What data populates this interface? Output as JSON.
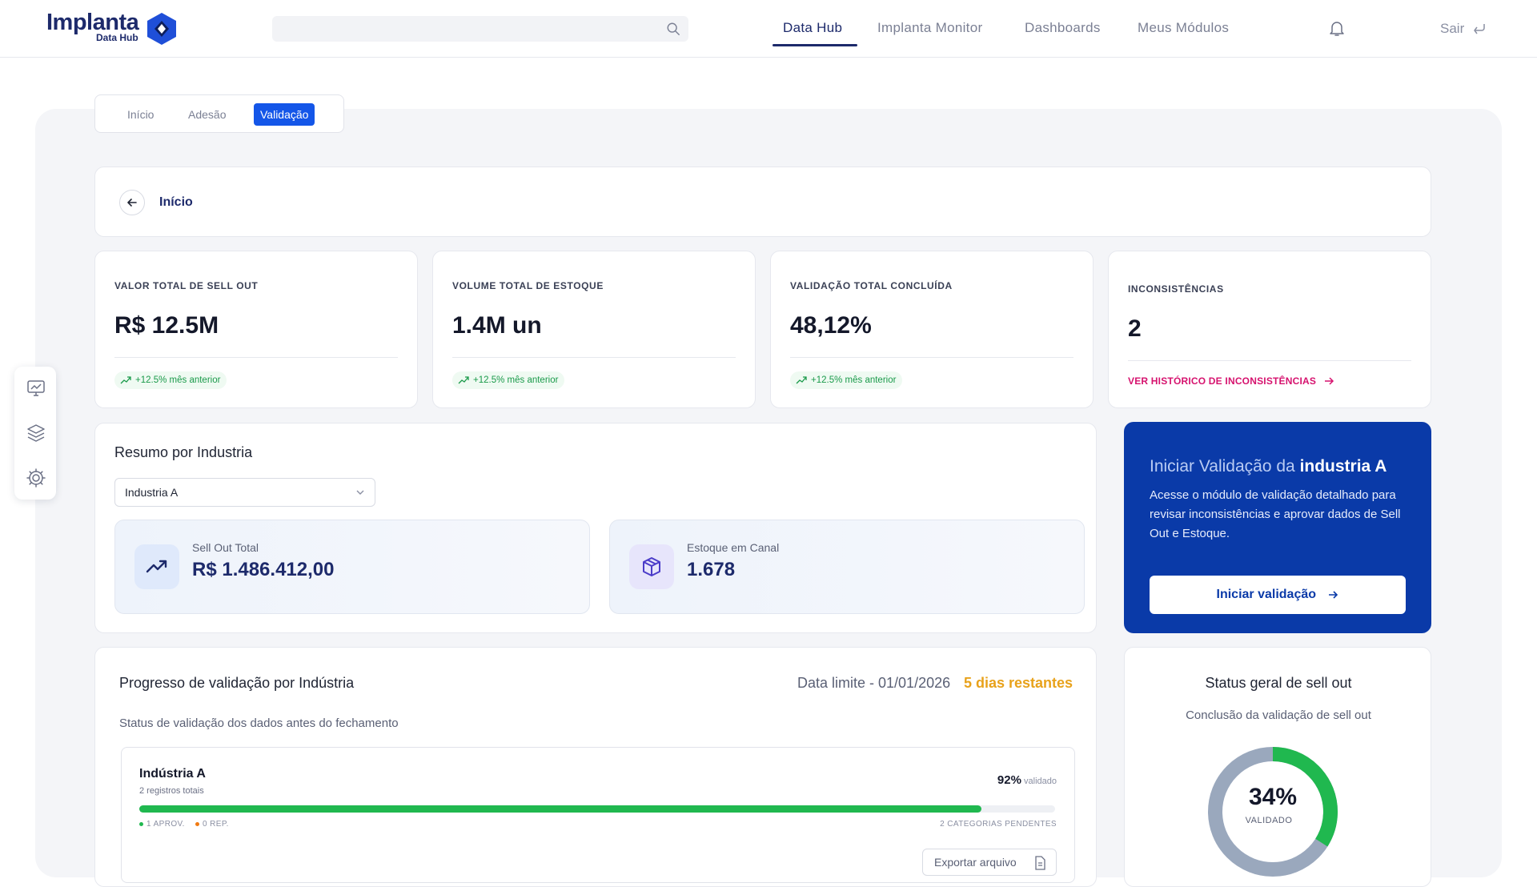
{
  "header": {
    "logo_word": "Implanta",
    "logo_sub": "Data Hub",
    "nav": [
      "Data Hub",
      "Implanta Monitor",
      "Dashboards",
      "Meus Módulos"
    ],
    "logout": "Sair"
  },
  "tabs": [
    "Início",
    "Adesão",
    "Validação"
  ],
  "breadcrumb": {
    "back_label": "Início"
  },
  "kpis": [
    {
      "label": "VALOR TOTAL DE SELL OUT",
      "value": "R$ 12.5M",
      "badge": "+12.5% mês anterior"
    },
    {
      "label": "VOLUME TOTAL DE ESTOQUE",
      "value": "1.4M un",
      "badge": "+12.5% mês anterior"
    },
    {
      "label": "VALIDAÇÃO TOTAL CONCLUÍDA",
      "value": "48,12%",
      "badge": "+12.5% mês anterior"
    },
    {
      "label": "INCONSISTÊNCIAS",
      "value": "2",
      "link": "VER HISTÓRICO DE INCONSISTÊNCIAS"
    }
  ],
  "summary": {
    "title": "Resumo por Industria",
    "select_value": "Industria A",
    "metrics": [
      {
        "label": "Sell Out Total",
        "value": "R$ 1.486.412,00"
      },
      {
        "label": "Estoque em Canal",
        "value": "1.678"
      }
    ]
  },
  "cta": {
    "title_prefix": "Iniciar Validação da ",
    "title_bold": "industria A",
    "description": "Acesse o módulo de validação detalhado para revisar inconsistências e aprovar dados de Sell Out e Estoque.",
    "button": "Iniciar validação"
  },
  "progress": {
    "title": "Progresso de validação por Indústria",
    "deadline": "Data limite - 01/01/2026",
    "remaining": "5 dias restantes",
    "subtitle": "Status de validação dos dados antes do fechamento",
    "industry": {
      "name": "Indústria A",
      "records": "2 registros totais",
      "percent_label": "92%",
      "percent_suffix": "validado",
      "fraction": 0.92,
      "approved": "1 APROV.",
      "rejected": "0 REP.",
      "pending": "2 CATEGORIAS PENDENTES"
    },
    "export": "Exportar arquivo"
  },
  "status": {
    "title": "Status geral de sell out",
    "subtitle": "Conclusão da validação de sell out",
    "percent": "34%",
    "percent_label": "VALIDADO",
    "fraction": 0.34
  },
  "colors": {
    "brand": "#1d2a6b",
    "primary": "#1456e8",
    "cta": "#0a3aa8",
    "success": "#20b84f",
    "warning": "#e8a21b",
    "danger_link": "#d6126e",
    "donut_rest": "#9aa8bd"
  }
}
